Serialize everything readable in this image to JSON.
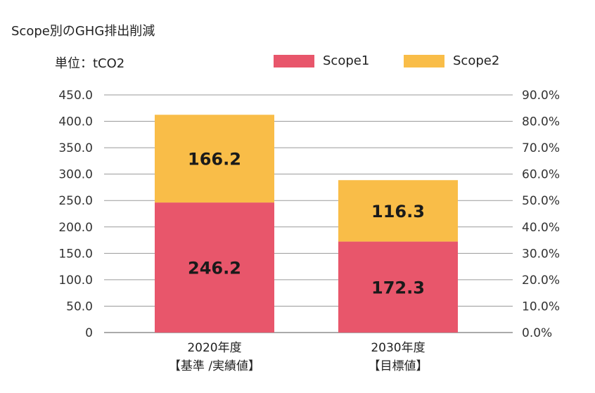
{
  "chart_data": {
    "type": "bar",
    "stacked": true,
    "title": "Scope別のGHG排出削減",
    "unit_label": "単位：tCO2",
    "categories": [
      [
        "2020年度",
        "【基準 /実績値】"
      ],
      [
        "2030年度",
        "【目標値】"
      ]
    ],
    "series": [
      {
        "name": "Scope1",
        "color": "#e8566b",
        "values": [
          246.2,
          172.3
        ]
      },
      {
        "name": "Scope2",
        "color": "#f9bd48",
        "values": [
          166.2,
          116.3
        ]
      }
    ],
    "ylim": [
      0,
      450
    ],
    "y_ticks": [
      "0",
      "50.0",
      "100.0",
      "150.0",
      "200.0",
      "250.0",
      "300.0",
      "350.0",
      "400.0",
      "450.0"
    ],
    "y2lim": [
      0,
      90
    ],
    "y2_ticks": [
      "0.0%",
      "10.0%",
      "20.0%",
      "30.0%",
      "40.0%",
      "50.0%",
      "60.0%",
      "70.0%",
      "80.0%",
      "90.0%"
    ],
    "grid": true,
    "legend_position": "top-right"
  }
}
